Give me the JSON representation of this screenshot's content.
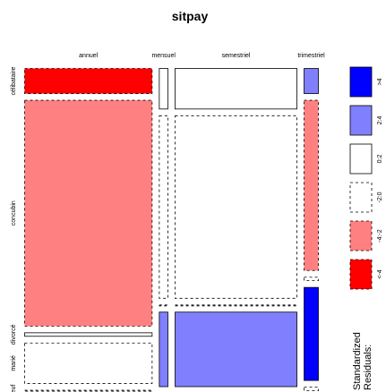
{
  "chart_data": {
    "type": "mosaic",
    "title": "sitpay",
    "columns": [
      "annuel",
      "mensuel",
      "semestriel",
      "trimestriel"
    ],
    "rows": [
      "célibataire",
      "concubin",
      "divorcé",
      "marié",
      "veuf"
    ],
    "column_proportions": [
      0.46,
      0.04,
      0.44,
      0.06
    ],
    "row_proportions_by_column": [
      [
        0.09,
        0.74,
        0.02,
        0.14,
        0.01
      ],
      [
        0.14,
        0.6,
        0.01,
        0.25,
        0.02
      ],
      [
        0.14,
        0.6,
        0.01,
        0.25,
        0.02
      ],
      [
        0.09,
        0.56,
        0.02,
        0.31,
        0.02
      ]
    ],
    "residual_bins": [
      [
        -6,
        -3,
        0,
        -2,
        -1
      ],
      [
        1,
        -1,
        -1,
        3,
        1
      ],
      [
        1,
        -1,
        -1,
        3,
        1
      ],
      [
        3,
        -4,
        -1,
        5,
        -1
      ]
    ],
    "legend": {
      "title_line1": "Standardized",
      "title_line2": "Residuals:",
      "entries": [
        {
          "label": ">4",
          "fill": "#0000ff",
          "dashed": false
        },
        {
          "label": "2:4",
          "fill": "#8080ff",
          "dashed": false
        },
        {
          "label": "0:2",
          "fill": "#ffffff",
          "dashed": false
        },
        {
          "label": "-2:0",
          "fill": "#ffffff",
          "dashed": true
        },
        {
          "label": "-4:-2",
          "fill": "#ff8080",
          "dashed": true
        },
        {
          "label": "<-4",
          "fill": "#ff0000",
          "dashed": true
        }
      ]
    }
  }
}
